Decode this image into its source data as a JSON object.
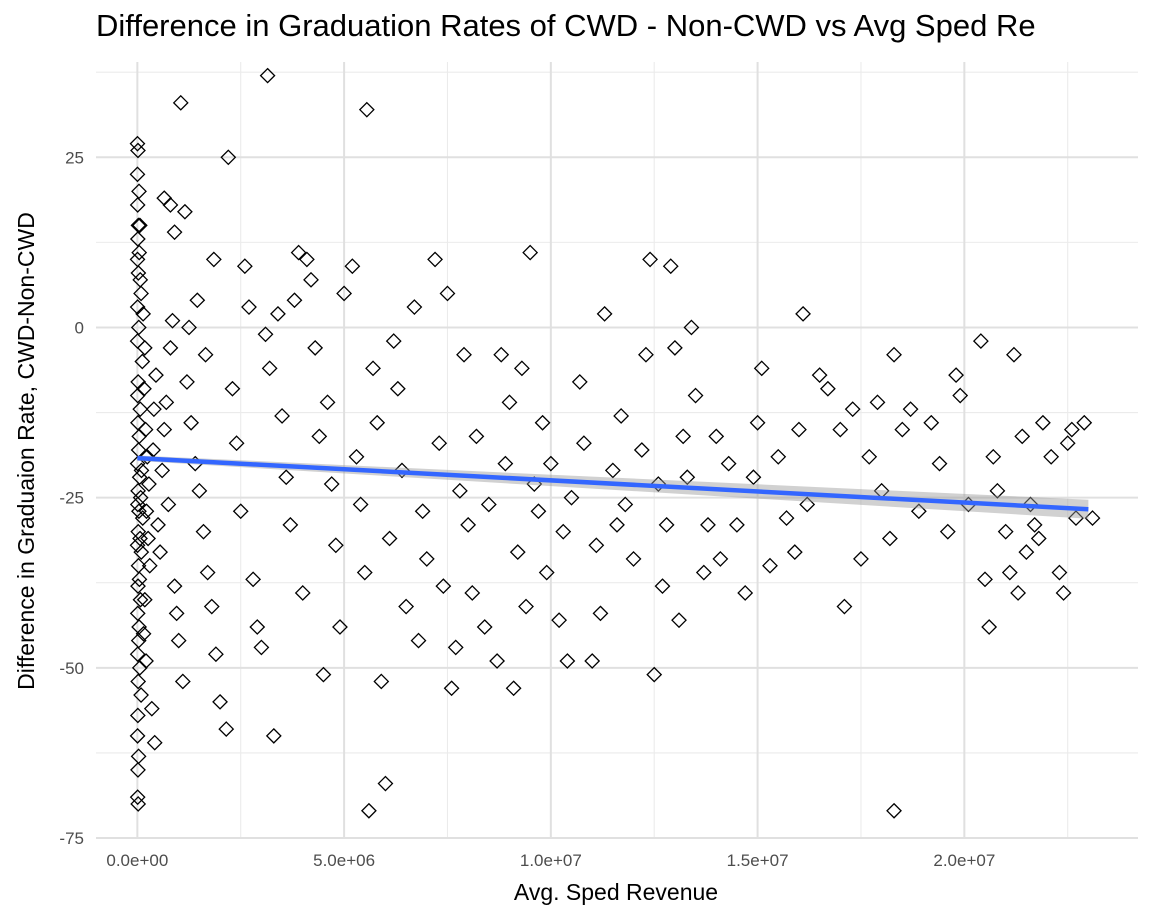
{
  "chart_data": {
    "type": "scatter",
    "title": "Difference in Graduation Rates of CWD - Non-CWD vs Avg Sped Re",
    "xlabel": "Avg. Sped Revenue",
    "ylabel": "Difference in Graduaion Rate, CWD-Non-CWD",
    "xlim": [
      -1000000,
      24200000
    ],
    "ylim": [
      -75,
      39
    ],
    "xticks": [
      0,
      5000000,
      10000000,
      15000000,
      20000000
    ],
    "xtick_labels": [
      "0.0e+00",
      "5.0e+06",
      "1.0e+07",
      "1.5e+07",
      "2.0e+07"
    ],
    "yticks": [
      -75,
      -50,
      -25,
      0,
      25
    ],
    "ytick_labels": [
      "-75",
      "-50",
      "-25",
      "0",
      "25"
    ],
    "grid": true,
    "marker": "open-diamond",
    "point_color": "#000000",
    "trend": {
      "method": "linear",
      "color": "#3366ff",
      "band_color": "#999999",
      "x": [
        0,
        23000000
      ],
      "y": [
        -19.2,
        -26.7
      ],
      "se": [
        0.4,
        1.4
      ]
    },
    "points": [
      [
        3000,
        27
      ],
      [
        15000,
        26
      ],
      [
        3000,
        22.5
      ],
      [
        40000,
        20
      ],
      [
        8000,
        18
      ],
      [
        60000,
        15
      ],
      [
        12000,
        13
      ],
      [
        4000,
        10
      ],
      [
        25000,
        8
      ],
      [
        90000,
        5
      ],
      [
        7000,
        3
      ],
      [
        35000,
        0
      ],
      [
        5000,
        -2
      ],
      [
        120000,
        -5
      ],
      [
        20000,
        -8
      ],
      [
        9000,
        -10
      ],
      [
        70000,
        -12
      ],
      [
        14000,
        -14
      ],
      [
        45000,
        -16
      ],
      [
        30000,
        -18
      ],
      [
        6000,
        -20
      ],
      [
        100000,
        -21
      ],
      [
        55000,
        -22
      ],
      [
        18000,
        -24
      ],
      [
        80000,
        -25
      ],
      [
        11000,
        -26
      ],
      [
        38000,
        -27
      ],
      [
        130000,
        -28
      ],
      [
        22000,
        -30
      ],
      [
        65000,
        -31
      ],
      [
        4000,
        -32
      ],
      [
        95000,
        -33
      ],
      [
        28000,
        -35
      ],
      [
        50000,
        -37
      ],
      [
        16000,
        -38
      ],
      [
        75000,
        -40
      ],
      [
        10000,
        -42
      ],
      [
        42000,
        -44
      ],
      [
        33000,
        -46
      ],
      [
        8000,
        -48
      ],
      [
        60000,
        -50
      ],
      [
        20000,
        -52
      ],
      [
        90000,
        -54
      ],
      [
        12000,
        -57
      ],
      [
        5000,
        -60
      ],
      [
        30000,
        -63
      ],
      [
        15000,
        -65
      ],
      [
        8000,
        -69
      ],
      [
        20000,
        -70
      ],
      [
        25000,
        15
      ],
      [
        45000,
        11
      ],
      [
        70000,
        7
      ],
      [
        140000,
        2
      ],
      [
        180000,
        -3
      ],
      [
        160000,
        -9
      ],
      [
        200000,
        -15
      ],
      [
        240000,
        -19
      ],
      [
        280000,
        -23
      ],
      [
        220000,
        -27
      ],
      [
        260000,
        -31
      ],
      [
        300000,
        -35
      ],
      [
        180000,
        -40
      ],
      [
        150000,
        -45
      ],
      [
        210000,
        -49
      ],
      [
        350000,
        -56
      ],
      [
        420000,
        -61
      ],
      [
        380000,
        -18
      ],
      [
        400000,
        -12
      ],
      [
        450000,
        -7
      ],
      [
        500000,
        -29
      ],
      [
        550000,
        -33
      ],
      [
        600000,
        -21
      ],
      [
        650000,
        -15
      ],
      [
        700000,
        -11
      ],
      [
        750000,
        -26
      ],
      [
        800000,
        -3
      ],
      [
        850000,
        1
      ],
      [
        900000,
        -38
      ],
      [
        950000,
        -42
      ],
      [
        1000000,
        -46
      ],
      [
        650000,
        19
      ],
      [
        800000,
        18
      ],
      [
        900000,
        14
      ],
      [
        1050000,
        33
      ],
      [
        1100000,
        -52
      ],
      [
        1150000,
        17
      ],
      [
        1200000,
        -8
      ],
      [
        1300000,
        -14
      ],
      [
        1400000,
        -20
      ],
      [
        1500000,
        -24
      ],
      [
        1600000,
        -30
      ],
      [
        1700000,
        -36
      ],
      [
        1800000,
        -41
      ],
      [
        1900000,
        -48
      ],
      [
        2000000,
        -55
      ],
      [
        1250000,
        0
      ],
      [
        1450000,
        4
      ],
      [
        1650000,
        -4
      ],
      [
        1850000,
        10
      ],
      [
        2150000,
        -59
      ],
      [
        2200000,
        25
      ],
      [
        2300000,
        -9
      ],
      [
        2400000,
        -17
      ],
      [
        2500000,
        -27
      ],
      [
        2600000,
        9
      ],
      [
        2700000,
        3
      ],
      [
        2800000,
        -37
      ],
      [
        2900000,
        -44
      ],
      [
        3000000,
        -47
      ],
      [
        3100000,
        -1
      ],
      [
        3150000,
        37
      ],
      [
        3200000,
        -6
      ],
      [
        3300000,
        -60
      ],
      [
        3400000,
        2
      ],
      [
        3500000,
        -13
      ],
      [
        3600000,
        -22
      ],
      [
        3700000,
        -29
      ],
      [
        3800000,
        4
      ],
      [
        3900000,
        11
      ],
      [
        4000000,
        -39
      ],
      [
        4100000,
        10
      ],
      [
        4200000,
        7
      ],
      [
        4300000,
        -3
      ],
      [
        4400000,
        -16
      ],
      [
        4500000,
        -51
      ],
      [
        4600000,
        -11
      ],
      [
        4700000,
        -23
      ],
      [
        4800000,
        -32
      ],
      [
        4900000,
        -44
      ],
      [
        5000000,
        5
      ],
      [
        5200000,
        9
      ],
      [
        5300000,
        -19
      ],
      [
        5400000,
        -26
      ],
      [
        5500000,
        -36
      ],
      [
        5550000,
        32
      ],
      [
        5600000,
        -71
      ],
      [
        5700000,
        -6
      ],
      [
        5800000,
        -14
      ],
      [
        5900000,
        -52
      ],
      [
        6000000,
        -67
      ],
      [
        6100000,
        -31
      ],
      [
        6200000,
        -2
      ],
      [
        6300000,
        -9
      ],
      [
        6400000,
        -21
      ],
      [
        6500000,
        -41
      ],
      [
        6700000,
        3
      ],
      [
        6800000,
        -46
      ],
      [
        6900000,
        -27
      ],
      [
        7000000,
        -34
      ],
      [
        7200000,
        10
      ],
      [
        7300000,
        -17
      ],
      [
        7400000,
        -38
      ],
      [
        7500000,
        5
      ],
      [
        7600000,
        -53
      ],
      [
        7700000,
        -47
      ],
      [
        7800000,
        -24
      ],
      [
        7900000,
        -4
      ],
      [
        8000000,
        -29
      ],
      [
        8100000,
        -39
      ],
      [
        8200000,
        -16
      ],
      [
        8400000,
        -44
      ],
      [
        8500000,
        -26
      ],
      [
        8700000,
        -49
      ],
      [
        8800000,
        -4
      ],
      [
        8900000,
        -20
      ],
      [
        9000000,
        -11
      ],
      [
        9100000,
        -53
      ],
      [
        9200000,
        -33
      ],
      [
        9300000,
        -6
      ],
      [
        9400000,
        -41
      ],
      [
        9500000,
        11
      ],
      [
        9600000,
        -23
      ],
      [
        9700000,
        -27
      ],
      [
        9800000,
        -14
      ],
      [
        9900000,
        -36
      ],
      [
        10000000,
        -20
      ],
      [
        10200000,
        -43
      ],
      [
        10300000,
        -30
      ],
      [
        10400000,
        -49
      ],
      [
        10500000,
        -25
      ],
      [
        10700000,
        -8
      ],
      [
        10800000,
        -17
      ],
      [
        11000000,
        -49
      ],
      [
        11100000,
        -32
      ],
      [
        11200000,
        -42
      ],
      [
        11300000,
        2
      ],
      [
        11500000,
        -21
      ],
      [
        11600000,
        -29
      ],
      [
        11700000,
        -13
      ],
      [
        11800000,
        -26
      ],
      [
        12000000,
        -34
      ],
      [
        12200000,
        -18
      ],
      [
        12300000,
        -4
      ],
      [
        12400000,
        10
      ],
      [
        12500000,
        -51
      ],
      [
        12600000,
        -23
      ],
      [
        12700000,
        -38
      ],
      [
        12800000,
        -29
      ],
      [
        12900000,
        9
      ],
      [
        13000000,
        -3
      ],
      [
        13100000,
        -43
      ],
      [
        13200000,
        -16
      ],
      [
        13300000,
        -22
      ],
      [
        13400000,
        0
      ],
      [
        13500000,
        -10
      ],
      [
        13700000,
        -36
      ],
      [
        13800000,
        -29
      ],
      [
        14000000,
        -16
      ],
      [
        14100000,
        -34
      ],
      [
        14300000,
        -20
      ],
      [
        14500000,
        -29
      ],
      [
        14700000,
        -39
      ],
      [
        14900000,
        -22
      ],
      [
        15000000,
        -14
      ],
      [
        15100000,
        -6
      ],
      [
        15300000,
        -35
      ],
      [
        15500000,
        -19
      ],
      [
        15700000,
        -28
      ],
      [
        15900000,
        -33
      ],
      [
        16000000,
        -15
      ],
      [
        16100000,
        2
      ],
      [
        16200000,
        -26
      ],
      [
        16500000,
        -7
      ],
      [
        16700000,
        -9
      ],
      [
        17000000,
        -15
      ],
      [
        17100000,
        -41
      ],
      [
        17300000,
        -12
      ],
      [
        17500000,
        -34
      ],
      [
        17700000,
        -19
      ],
      [
        17900000,
        -11
      ],
      [
        18000000,
        -24
      ],
      [
        18200000,
        -31
      ],
      [
        18300000,
        -4
      ],
      [
        18300000,
        -71
      ],
      [
        18500000,
        -15
      ],
      [
        18700000,
        -12
      ],
      [
        18900000,
        -27
      ],
      [
        19200000,
        -14
      ],
      [
        19400000,
        -20
      ],
      [
        19600000,
        -30
      ],
      [
        19800000,
        -7
      ],
      [
        19900000,
        -10
      ],
      [
        20100000,
        -26
      ],
      [
        20400000,
        -2
      ],
      [
        20500000,
        -37
      ],
      [
        20600000,
        -44
      ],
      [
        20700000,
        -19
      ],
      [
        20800000,
        -24
      ],
      [
        21000000,
        -30
      ],
      [
        21100000,
        -36
      ],
      [
        21200000,
        -4
      ],
      [
        21300000,
        -39
      ],
      [
        21400000,
        -16
      ],
      [
        21500000,
        -33
      ],
      [
        21600000,
        -26
      ],
      [
        21700000,
        -29
      ],
      [
        21800000,
        -31
      ],
      [
        21900000,
        -14
      ],
      [
        22100000,
        -19
      ],
      [
        22300000,
        -36
      ],
      [
        22400000,
        -39
      ],
      [
        22500000,
        -17
      ],
      [
        22600000,
        -15
      ],
      [
        22700000,
        -28
      ],
      [
        22900000,
        -14
      ],
      [
        23100000,
        -28
      ]
    ]
  }
}
